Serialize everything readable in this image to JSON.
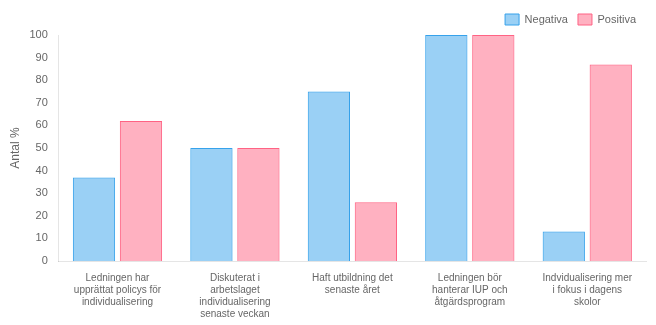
{
  "chart_data": {
    "type": "bar",
    "categories": [
      "Ledningen har\nupprättat policys för\nindividualisering",
      "Diskuterat i\narbetslaget\nindividualisering\nsenaste veckan",
      "Haft utbildning det\nsenaste året",
      "Ledningen bör\nhanterar IUP och\nåtgärdsprogram",
      "Indvidualisering mer\ni fokus i dagens\nskolor"
    ],
    "series": [
      {
        "name": "Negativa",
        "values": [
          37,
          50,
          75,
          100,
          13
        ]
      },
      {
        "name": "Positiva",
        "values": [
          62,
          50,
          26,
          100,
          87
        ]
      }
    ],
    "ylabel": "Antal %",
    "ylim": [
      0,
      100
    ],
    "yticks": [
      0,
      10,
      20,
      30,
      40,
      50,
      60,
      70,
      80,
      90,
      100
    ],
    "grid": false,
    "legend": "upper right"
  }
}
